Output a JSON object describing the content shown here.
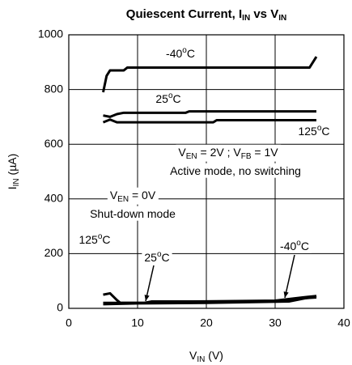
{
  "chart_data": {
    "type": "line",
    "title": {
      "parts": [
        "Quiescent Current, I",
        "IN",
        " vs V",
        "IN"
      ],
      "script": "sub"
    },
    "x_label": {
      "parts": [
        "V",
        "IN",
        " (V)"
      ],
      "script": "sub"
    },
    "y_label": {
      "parts": [
        "I",
        "IN",
        " (µA)"
      ],
      "script": "sub"
    },
    "xlim": [
      0,
      40
    ],
    "ylim": [
      0,
      1000
    ],
    "xticks": [
      0,
      10,
      20,
      30,
      40
    ],
    "yticks": [
      0,
      200,
      400,
      600,
      800,
      1000
    ],
    "grid": true,
    "series": [
      {
        "color": "#000000",
        "x": [
          5,
          5.5,
          6,
          8,
          8.5,
          35,
          35.5,
          36
        ],
        "values": [
          790,
          850,
          870,
          870,
          880,
          880,
          900,
          920
        ]
      },
      {
        "color": "#000000",
        "x": [
          5,
          6,
          7,
          8,
          17,
          17.5,
          36
        ],
        "values": [
          705,
          700,
          710,
          715,
          715,
          720,
          720
        ]
      },
      {
        "color": "#000000",
        "x": [
          5,
          6,
          7,
          21,
          21.5,
          36
        ],
        "values": [
          680,
          690,
          680,
          680,
          688,
          688
        ]
      },
      {
        "color": "#000000",
        "x": [
          5,
          6,
          7,
          7.5,
          12,
          18,
          30,
          34,
          36
        ],
        "values": [
          50,
          55,
          30,
          20,
          20,
          25,
          28,
          40,
          45
        ]
      },
      {
        "color": "#000000",
        "x": [
          5,
          11,
          12,
          31,
          33,
          36
        ],
        "values": [
          20,
          20,
          25,
          25,
          35,
          40
        ]
      },
      {
        "color": "#000000",
        "x": [
          5,
          10,
          20,
          32,
          34,
          36
        ],
        "values": [
          15,
          18,
          20,
          25,
          35,
          45
        ]
      }
    ],
    "annotations": [
      {
        "parts": [
          "-40",
          "o",
          "C"
        ],
        "script": "sup"
      },
      {
        "parts": [
          "25",
          "o",
          "C"
        ],
        "script": "sup"
      },
      {
        "parts": [
          "125",
          "o",
          "C"
        ],
        "script": "sup"
      },
      {
        "parts": [
          "V",
          "EN",
          " = 2V ; V",
          "FB",
          " = 1V"
        ],
        "script": "sub"
      },
      {
        "parts": [
          "Active mode, no switching"
        ],
        "script": "sub"
      },
      {
        "parts": [
          "V",
          "EN",
          " = 0V"
        ],
        "script": "sub"
      },
      {
        "parts": [
          "Shut-down mode"
        ],
        "script": "sub"
      },
      {
        "parts": [
          "125",
          "o",
          "C"
        ],
        "script": "sup"
      },
      {
        "parts": [
          "25",
          "o",
          "C"
        ],
        "script": "sup"
      },
      {
        "parts": [
          "-40",
          "o",
          "C"
        ],
        "script": "sup"
      }
    ]
  }
}
